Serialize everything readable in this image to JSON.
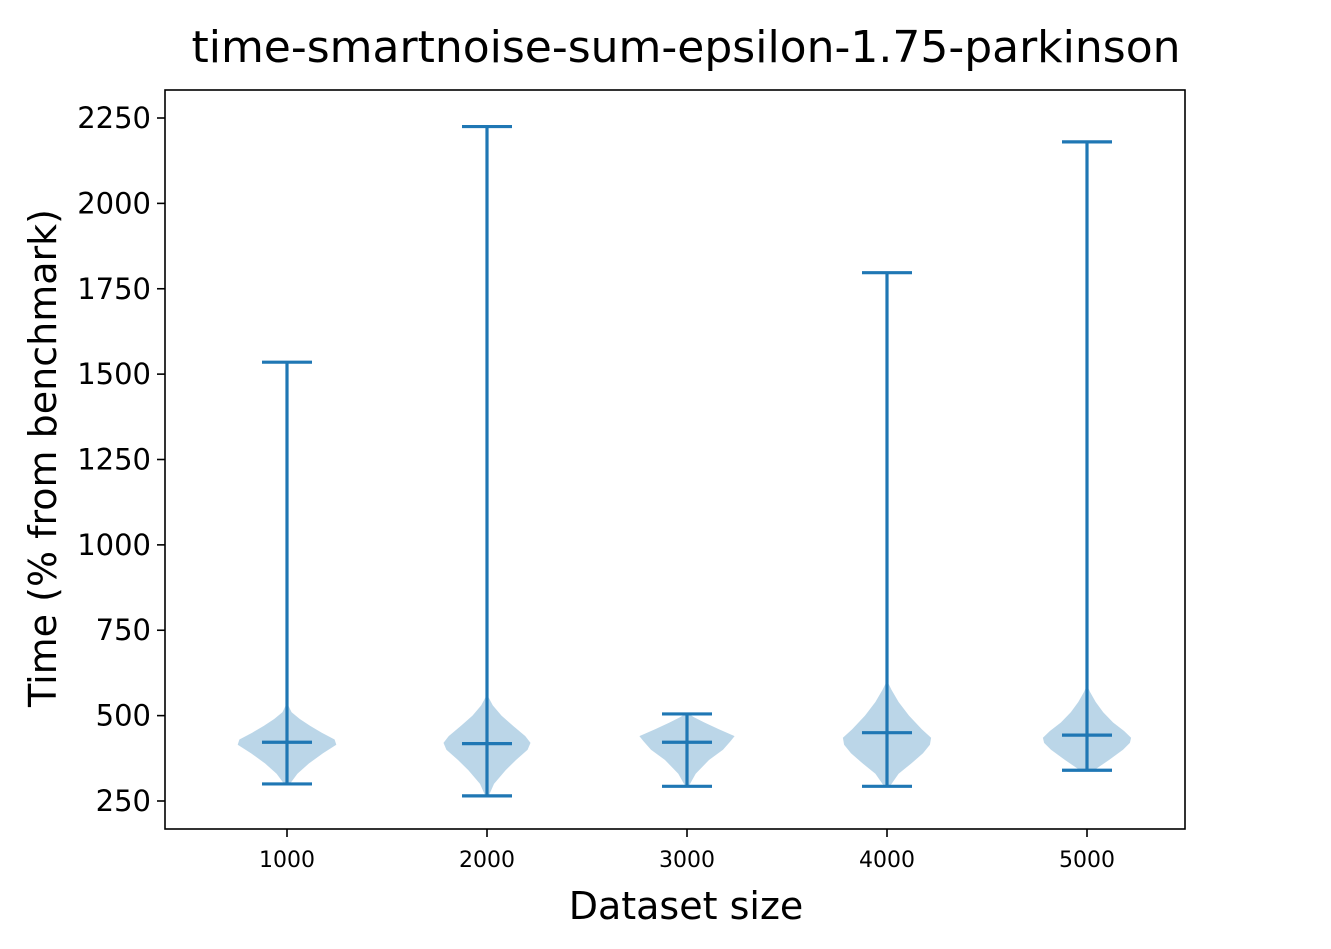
{
  "chart_data": {
    "type": "violin",
    "title": "time-smartnoise-sum-epsilon-1.75-parkinson",
    "xlabel": "Dataset size",
    "ylabel": "Time (% from benchmark)",
    "categories": [
      "1000",
      "2000",
      "3000",
      "4000",
      "5000"
    ],
    "yticks": [
      250,
      500,
      750,
      1000,
      1250,
      1500,
      1750,
      2000,
      2250
    ],
    "ylim": [
      168,
      2332
    ],
    "grid": false,
    "legend": "none",
    "colors": {
      "line": "#1f77b4",
      "body": "#1f77b4"
    },
    "series": [
      {
        "category": "1000",
        "min": 300,
        "median": 422,
        "max": 1535
      },
      {
        "category": "2000",
        "min": 265,
        "median": 418,
        "max": 2225
      },
      {
        "category": "3000",
        "min": 293,
        "median": 422,
        "max": 505
      },
      {
        "category": "4000",
        "min": 293,
        "median": 450,
        "max": 1797
      },
      {
        "category": "5000",
        "min": 340,
        "median": 443,
        "max": 2180
      }
    ],
    "bodies": [
      {
        "category": "1000",
        "density": [
          [
            300,
            0.05
          ],
          [
            330,
            0.18
          ],
          [
            360,
            0.38
          ],
          [
            390,
            0.62
          ],
          [
            415,
            0.85
          ],
          [
            430,
            0.82
          ],
          [
            450,
            0.6
          ],
          [
            470,
            0.4
          ],
          [
            490,
            0.22
          ],
          [
            510,
            0.08
          ],
          [
            530,
            0.02
          ]
        ]
      },
      {
        "category": "2000",
        "density": [
          [
            265,
            0.03
          ],
          [
            300,
            0.12
          ],
          [
            340,
            0.32
          ],
          [
            370,
            0.5
          ],
          [
            400,
            0.7
          ],
          [
            420,
            0.75
          ],
          [
            440,
            0.66
          ],
          [
            470,
            0.45
          ],
          [
            500,
            0.25
          ],
          [
            530,
            0.1
          ],
          [
            555,
            0.02
          ]
        ]
      },
      {
        "category": "3000",
        "density": [
          [
            293,
            0.03
          ],
          [
            330,
            0.15
          ],
          [
            370,
            0.38
          ],
          [
            400,
            0.62
          ],
          [
            425,
            0.75
          ],
          [
            440,
            0.82
          ],
          [
            460,
            0.55
          ],
          [
            480,
            0.3
          ],
          [
            495,
            0.12
          ],
          [
            505,
            0.03
          ]
        ]
      },
      {
        "category": "4000",
        "density": [
          [
            293,
            0.05
          ],
          [
            330,
            0.2
          ],
          [
            360,
            0.42
          ],
          [
            390,
            0.62
          ],
          [
            415,
            0.74
          ],
          [
            435,
            0.76
          ],
          [
            460,
            0.6
          ],
          [
            500,
            0.38
          ],
          [
            540,
            0.2
          ],
          [
            575,
            0.08
          ],
          [
            595,
            0.02
          ]
        ]
      },
      {
        "category": "5000",
        "density": [
          [
            340,
            0.12
          ],
          [
            370,
            0.38
          ],
          [
            400,
            0.62
          ],
          [
            420,
            0.74
          ],
          [
            435,
            0.76
          ],
          [
            455,
            0.64
          ],
          [
            480,
            0.45
          ],
          [
            510,
            0.28
          ],
          [
            540,
            0.15
          ],
          [
            570,
            0.05
          ],
          [
            585,
            0.01
          ]
        ]
      }
    ]
  }
}
